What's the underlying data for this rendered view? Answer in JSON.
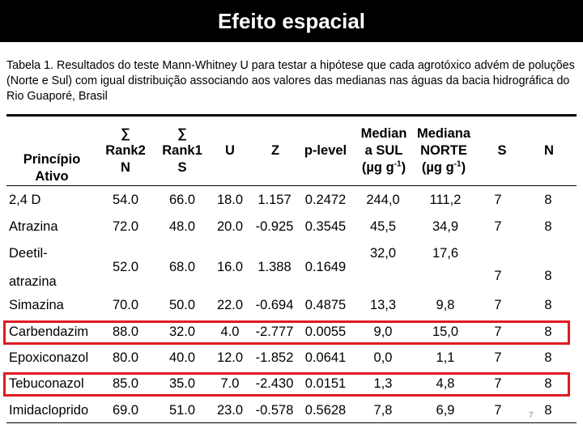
{
  "title": "Efeito espacial",
  "caption": "Tabela 1. Resultados do teste Mann-Whitney U para testar a hipótese que cada agrotóxico advém de poluções (Norte e Sul) com igual distribuição associando aos valores das medianas nas águas da bacia hidrográfica do Rio Guaporé, Brasil",
  "headers": {
    "principio": [
      "Princípio",
      "Ativo"
    ],
    "rank2": [
      "∑",
      "Rank2",
      "N"
    ],
    "rank1": [
      "∑",
      "Rank1",
      "S"
    ],
    "u": "U",
    "z": "Z",
    "plevel": "p-level",
    "med_sul": [
      "Median",
      "a SUL",
      "(µg g",
      "-1",
      ")"
    ],
    "med_norte": [
      "Mediana",
      "NORTE",
      "(µg g",
      "-1",
      ")"
    ],
    "s": "S",
    "n": "N"
  },
  "rows": [
    {
      "name": [
        "2,4 D"
      ],
      "rank2": "54.0",
      "rank1": "66.0",
      "u": "18.0",
      "z": "1.157",
      "p": "0.2472",
      "med_sul": "244,0",
      "med_norte": "111,2",
      "s": "7",
      "n": "8"
    },
    {
      "name": [
        "Atrazina"
      ],
      "rank2": "72.0",
      "rank1": "48.0",
      "u": "20.0",
      "z": "-0.925",
      "p": "0.3545",
      "med_sul": "45,5",
      "med_norte": "34,9",
      "s": "7",
      "n": "8"
    },
    {
      "name": [
        "Deetil-",
        "atrazina"
      ],
      "rank2": "52.0",
      "rank1": "68.0",
      "u": "16.0",
      "z": "1.388",
      "p": "0.1649",
      "med_sul": "32,0",
      "med_norte": "17,6",
      "s": "7",
      "n": "8"
    },
    {
      "name": [
        "Simazina"
      ],
      "rank2": "70.0",
      "rank1": "50.0",
      "u": "22.0",
      "z": "-0.694",
      "p": "0.4875",
      "med_sul": "13,3",
      "med_norte": "9,8",
      "s": "7",
      "n": "8"
    },
    {
      "name": [
        "Carbendazim"
      ],
      "rank2": "88.0",
      "rank1": "32.0",
      "u": "4.0",
      "z": "-2.777",
      "p": "0.0055",
      "med_sul": "9,0",
      "med_norte": "15,0",
      "s": "7",
      "n": "8"
    },
    {
      "name": [
        "Epoxiconazol"
      ],
      "rank2": "80.0",
      "rank1": "40.0",
      "u": "12.0",
      "z": "-1.852",
      "p": "0.0641",
      "med_sul": "0,0",
      "med_norte": "1,1",
      "s": "7",
      "n": "8"
    },
    {
      "name": [
        "Tebuconazol"
      ],
      "rank2": "85.0",
      "rank1": "35.0",
      "u": "7.0",
      "z": "-2.430",
      "p": "0.0151",
      "med_sul": "1,3",
      "med_norte": "4,8",
      "s": "7",
      "n": "8"
    },
    {
      "name": [
        "Imidacloprido"
      ],
      "rank2": "69.0",
      "rank1": "51.0",
      "u": "23.0",
      "z": "-0.578",
      "p": "0.5628",
      "med_sul": "7,8",
      "med_norte": "6,9",
      "s": "7",
      "n": "8"
    }
  ],
  "highlighted_rows": [
    "Carbendazim",
    "Tebuconazol"
  ],
  "highlight_color": "#e01a22",
  "slide_number": "7"
}
